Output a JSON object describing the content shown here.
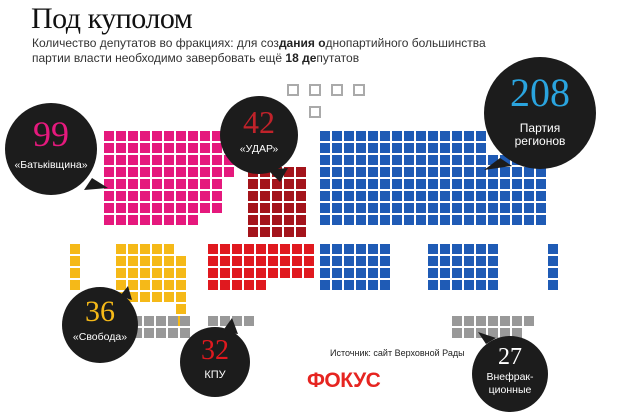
{
  "title": "Под куполом",
  "subtitle": {
    "line1_a": "Количество депутатов во фракциях: для соз",
    "line1_b": "дания о",
    "line1_c": "днопартийного большинства",
    "line2_a": "партии власти необходимо завербовать ещё ",
    "line2_b": "18 де",
    "line2_c": "путатов"
  },
  "source": "Источник: сайт Верховной Рады",
  "logo": "ФОКУС",
  "chart_data": {
    "type": "parliament",
    "title": "Под куполом",
    "categories": [
      "Партия регионов",
      "«Батьківщина»",
      "«УДАР»",
      "«Свобода»",
      "КПУ",
      "Внефракционные"
    ],
    "values": [
      208,
      99,
      42,
      36,
      32,
      27
    ],
    "colors": {
      "Партия регионов": "#1f5bb5",
      "«Батьківщина»": "#e5197d",
      "«УДАР»": "#a4141b",
      "«Свобода»": "#f5b918",
      "КПУ": "#e0191f",
      "Внефракционные": "#999999"
    }
  },
  "bubbles": [
    {
      "id": "regions",
      "number": "208",
      "label_line1": "Партия",
      "label_line2": "регионов",
      "number_color": "#2aa4de"
    },
    {
      "id": "batkiv",
      "number": "99",
      "label_line1": "«Батьківщина»",
      "label_line2": "",
      "number_color": "#e5197d"
    },
    {
      "id": "udar",
      "number": "42",
      "label_line1": "«УДАР»",
      "label_line2": "",
      "number_color": "#c0222a"
    },
    {
      "id": "svoboda",
      "number": "36",
      "label_line1": "«Свобода»",
      "label_line2": "",
      "number_color": "#f5b918"
    },
    {
      "id": "kpu",
      "number": "32",
      "label_line1": "КПУ",
      "label_line2": "",
      "number_color": "#e0191f"
    },
    {
      "id": "nonfaction",
      "number": "27",
      "label_line1": "Внефрак-",
      "label_line2": "ционные",
      "number_color": "#ffffff"
    }
  ]
}
